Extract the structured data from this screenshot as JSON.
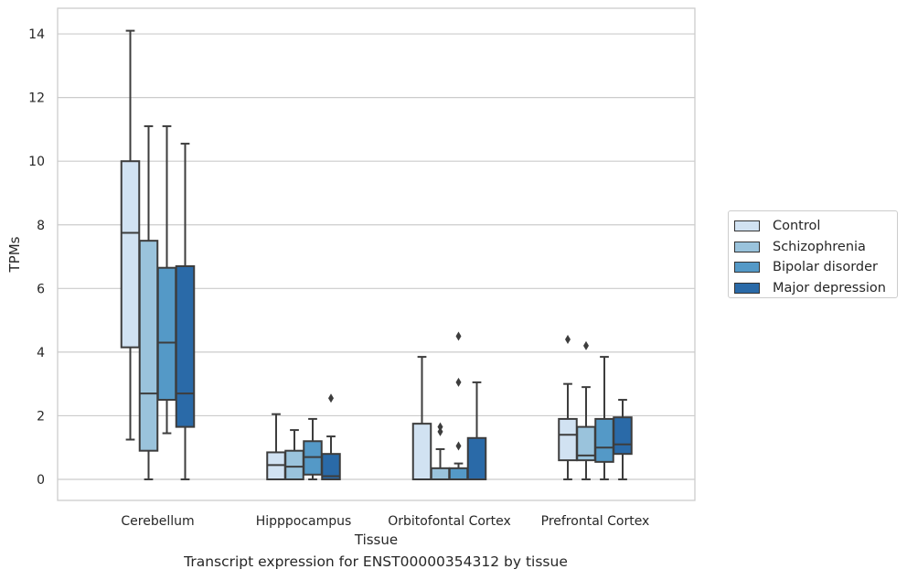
{
  "caption": "Transcript expression for ENST00000354312 by tissue",
  "chart_data": {
    "type": "box",
    "xlabel": "Tissue",
    "ylabel": "TPMs",
    "ylim": [
      -0.7,
      14.8
    ],
    "yticks": [
      0,
      2,
      4,
      6,
      8,
      10,
      12,
      14
    ],
    "grid": "horizontal",
    "legend_position": "right, outside plot",
    "categories": [
      "Cerebellum",
      "Hipppocampus",
      "Orbitofontal Cortex",
      "Prefrontal Cortex"
    ],
    "series": [
      {
        "name": "Control",
        "color": "#d1e2f2",
        "boxes": [
          {
            "whislo": 1.25,
            "q1": 4.15,
            "med": 7.75,
            "q3": 10.0,
            "whishi": 14.1,
            "fliers": []
          },
          {
            "whislo": 0.0,
            "q1": 0.0,
            "med": 0.45,
            "q3": 0.85,
            "whishi": 2.05,
            "fliers": []
          },
          {
            "whislo": 0.0,
            "q1": 0.0,
            "med": 0.0,
            "q3": 1.75,
            "whishi": 3.85,
            "fliers": []
          },
          {
            "whislo": 0.0,
            "q1": 0.6,
            "med": 1.4,
            "q3": 1.9,
            "whishi": 3.0,
            "fliers": [
              4.4
            ]
          }
        ]
      },
      {
        "name": "Schizophrenia",
        "color": "#9ac3dc",
        "boxes": [
          {
            "whislo": 0.0,
            "q1": 0.9,
            "med": 2.7,
            "q3": 7.5,
            "whishi": 11.1,
            "fliers": []
          },
          {
            "whislo": 0.0,
            "q1": 0.0,
            "med": 0.4,
            "q3": 0.9,
            "whishi": 1.55,
            "fliers": []
          },
          {
            "whislo": 0.0,
            "q1": 0.0,
            "med": 0.0,
            "q3": 0.35,
            "whishi": 0.95,
            "fliers": [
              1.5,
              1.65
            ]
          },
          {
            "whislo": 0.0,
            "q1": 0.6,
            "med": 0.75,
            "q3": 1.65,
            "whishi": 2.9,
            "fliers": [
              4.2
            ]
          }
        ]
      },
      {
        "name": "Bipolar disorder",
        "color": "#5499c7",
        "boxes": [
          {
            "whislo": 1.45,
            "q1": 2.5,
            "med": 4.3,
            "q3": 6.65,
            "whishi": 11.1,
            "fliers": []
          },
          {
            "whislo": 0.0,
            "q1": 0.15,
            "med": 0.7,
            "q3": 1.2,
            "whishi": 1.9,
            "fliers": []
          },
          {
            "whislo": 0.0,
            "q1": 0.0,
            "med": 0.0,
            "q3": 0.35,
            "whishi": 0.5,
            "fliers": [
              1.05,
              3.05,
              4.5
            ]
          },
          {
            "whislo": 0.0,
            "q1": 0.55,
            "med": 1.0,
            "q3": 1.9,
            "whishi": 3.85,
            "fliers": []
          }
        ]
      },
      {
        "name": "Major depression",
        "color": "#2a6aa8",
        "boxes": [
          {
            "whislo": 0.0,
            "q1": 1.65,
            "med": 2.7,
            "q3": 6.7,
            "whishi": 10.55,
            "fliers": []
          },
          {
            "whislo": 0.0,
            "q1": 0.0,
            "med": 0.1,
            "q3": 0.8,
            "whishi": 1.35,
            "fliers": [
              2.55
            ]
          },
          {
            "whislo": 0.0,
            "q1": 0.0,
            "med": 0.0,
            "q3": 1.3,
            "whishi": 3.05,
            "fliers": []
          },
          {
            "whislo": 0.0,
            "q1": 0.8,
            "med": 1.1,
            "q3": 1.95,
            "whishi": 2.5,
            "fliers": []
          }
        ]
      }
    ]
  }
}
